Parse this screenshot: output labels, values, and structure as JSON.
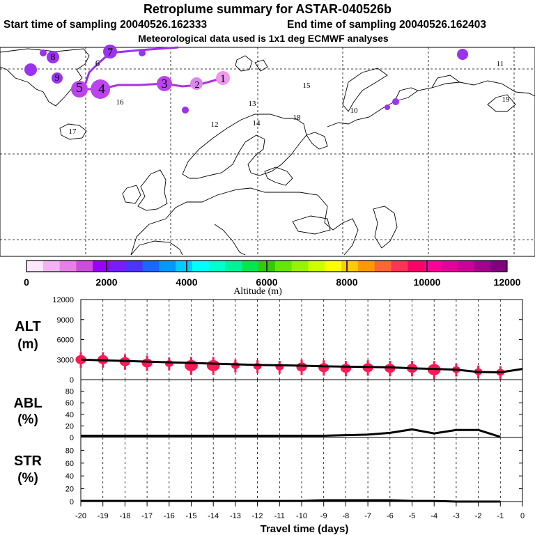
{
  "header": {
    "title": "Retroplume summary for ASTAR-040526b",
    "start_label": "Start time of sampling 20040526.162333",
    "end_label": "End time of sampling 20040526.162403",
    "met_label": "Meteorological data used is 1x1 deg ECMWF analyses"
  },
  "colors": {
    "altitude_palette": [
      "#ffe6ff",
      "#f2b3f2",
      "#e680e6",
      "#cc4dd9",
      "#9900ff",
      "#7a1aff",
      "#4d33ff",
      "#1a66ff",
      "#0099ff",
      "#00ccff",
      "#00ffff",
      "#00ffcc",
      "#00f29a",
      "#00e64d",
      "#33cc00",
      "#66e600",
      "#99f200",
      "#ccff00",
      "#ffff00",
      "#ffcc00",
      "#ff9900",
      "#ff6633",
      "#ff3355",
      "#ff0066",
      "#ff0099",
      "#e6009a",
      "#cc0099",
      "#a6008c",
      "#800080"
    ],
    "path": "#aa33dd",
    "marker": "#ff1a55"
  },
  "map": {
    "projection": "lat-lon",
    "labels": [
      {
        "text": "5",
        "color": "#aa33ee"
      },
      {
        "text": "4",
        "color": "#aa33ee"
      },
      {
        "text": "3",
        "color": "#aa33ee"
      },
      {
        "text": "2",
        "color": "#cc66ee"
      },
      {
        "text": "1",
        "color": "#dd88ee"
      },
      {
        "text": "6",
        "color": "#8833ee"
      },
      {
        "text": "7",
        "color": "#8833ee"
      },
      {
        "text": "8",
        "color": "#8833ee"
      },
      {
        "text": "9",
        "color": "#cc66ee"
      },
      {
        "text": "10",
        "color": "#5533ee"
      },
      {
        "text": "11",
        "color": "#5533ee"
      },
      {
        "text": "12",
        "color": "#5533ee"
      },
      {
        "text": "13",
        "color": "#5533ee"
      },
      {
        "text": "14",
        "color": "#5533ee"
      },
      {
        "text": "15",
        "color": "#5533ee"
      },
      {
        "text": "16",
        "color": "#5533ee"
      },
      {
        "text": "17",
        "color": "#5533ee"
      },
      {
        "text": "18",
        "color": "#5533ee"
      },
      {
        "text": "19",
        "color": "#5533ee"
      }
    ]
  },
  "colorbar": {
    "tick_labels": [
      "0",
      "2000",
      "4000",
      "6000",
      "8000",
      "10000",
      "12000"
    ],
    "min": 0,
    "max": 12000,
    "xlabel": "Altitude (m)"
  },
  "chart_data": [
    {
      "type": "line",
      "panel": "ALT",
      "ylabel": "ALT",
      "yunit": "(m)",
      "ylim": [
        0,
        12000
      ],
      "yticks": [
        0,
        3000,
        6000,
        9000,
        12000
      ],
      "x": [
        -20,
        -19,
        -18,
        -17,
        -16,
        -15,
        -14,
        -13,
        -12,
        -11,
        -10,
        -9,
        -8,
        -7,
        -6,
        -5,
        -4,
        -3,
        -2,
        -1,
        0
      ],
      "values": [
        3000,
        2900,
        2800,
        2700,
        2600,
        2500,
        2400,
        2300,
        2200,
        2150,
        2100,
        2000,
        1950,
        1900,
        1850,
        1700,
        1600,
        1500,
        1150,
        1100,
        1600
      ],
      "markers": [
        {
          "x": -20,
          "y": 3000,
          "spread": 2
        },
        {
          "x": -19,
          "y": 3000,
          "spread": 2
        },
        {
          "x": -18,
          "y": 2700,
          "spread": 2
        },
        {
          "x": -17,
          "y": 2500,
          "spread": 2
        },
        {
          "x": -16,
          "y": 2400,
          "spread": 1
        },
        {
          "x": -15,
          "y": 2100,
          "spread": 3
        },
        {
          "x": -14,
          "y": 2100,
          "spread": 3
        },
        {
          "x": -13,
          "y": 2100,
          "spread": 1
        },
        {
          "x": -12,
          "y": 2000,
          "spread": 1
        },
        {
          "x": -11,
          "y": 1900,
          "spread": 1
        },
        {
          "x": -10,
          "y": 1900,
          "spread": 2
        },
        {
          "x": -9,
          "y": 1800,
          "spread": 2
        },
        {
          "x": -8,
          "y": 1700,
          "spread": 2
        },
        {
          "x": -7,
          "y": 1800,
          "spread": 2
        },
        {
          "x": -6,
          "y": 1700,
          "spread": 2
        },
        {
          "x": -5,
          "y": 1700,
          "spread": 2
        },
        {
          "x": -4,
          "y": 1500,
          "spread": 3
        },
        {
          "x": -3,
          "y": 1500,
          "spread": 1
        },
        {
          "x": -2,
          "y": 1200,
          "spread": 1
        },
        {
          "x": -1,
          "y": 1100,
          "spread": 1
        }
      ]
    },
    {
      "type": "line",
      "panel": "ABL",
      "ylabel": "ABL",
      "yunit": "(%)",
      "ylim": [
        0,
        100
      ],
      "yticks": [
        0,
        20,
        40,
        60,
        80
      ],
      "x": [
        -20,
        -19,
        -18,
        -17,
        -16,
        -15,
        -14,
        -13,
        -12,
        -11,
        -10,
        -9,
        -8,
        -7,
        -6,
        -5,
        -4,
        -3,
        -2,
        -1
      ],
      "values": [
        3,
        3,
        3,
        3,
        3,
        3,
        3,
        3,
        3,
        3,
        3,
        3,
        4,
        5,
        8,
        14,
        7,
        13,
        13,
        1
      ]
    },
    {
      "type": "line",
      "panel": "STR",
      "ylabel": "STR",
      "yunit": "(%)",
      "ylim": [
        0,
        100
      ],
      "yticks": [
        0,
        20,
        40,
        60,
        80
      ],
      "x": [
        -20,
        -19,
        -18,
        -17,
        -16,
        -15,
        -14,
        -13,
        -12,
        -11,
        -10,
        -9,
        -8,
        -7,
        -6,
        -5,
        -4,
        -3,
        -2,
        -1
      ],
      "values": [
        1,
        1,
        1,
        1,
        1,
        1,
        1,
        1,
        1,
        1,
        1,
        2,
        2,
        2,
        2,
        1,
        1,
        0,
        0,
        0
      ]
    }
  ],
  "xaxis": {
    "tick_labels": [
      "-20",
      "-19",
      "-18",
      "-17",
      "-16",
      "-15",
      "-14",
      "-13",
      "-12",
      "-11",
      "-10",
      "-9",
      "-8",
      "-7",
      "-6",
      "-5",
      "-4",
      "-3",
      "-2",
      "-1",
      "0"
    ],
    "xlabel": "Travel time (days)"
  }
}
